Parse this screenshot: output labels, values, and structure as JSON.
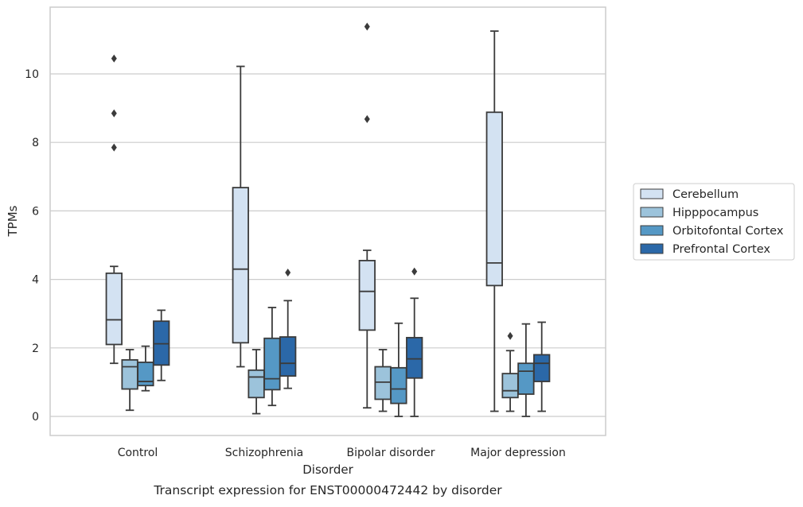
{
  "chart_data": {
    "type": "boxplot",
    "title": "",
    "caption": "Transcript expression for ENST00000472442 by disorder",
    "xlabel": "Disorder",
    "ylabel": "TPMs",
    "ylim": [
      -0.55,
      12.0
    ],
    "yticks": [
      0,
      2,
      4,
      6,
      8,
      10
    ],
    "grid": "horizontal",
    "legend_position": "right",
    "categories": [
      "Control",
      "Schizophrenia",
      "Bipolar disorder",
      "Major depression"
    ],
    "series": [
      {
        "name": "Cerebellum",
        "color": "#d3e2f2",
        "boxes": [
          {
            "whislo": 1.55,
            "q1": 2.1,
            "med": 2.82,
            "q3": 4.18,
            "whishi": 4.38,
            "fliers": [
              7.85,
              8.85,
              10.45
            ]
          },
          {
            "whislo": 1.45,
            "q1": 2.15,
            "med": 4.3,
            "q3": 6.68,
            "whishi": 10.22,
            "fliers": []
          },
          {
            "whislo": 0.25,
            "q1": 2.52,
            "med": 3.65,
            "q3": 4.55,
            "whishi": 4.85,
            "fliers": [
              8.68,
              11.38
            ]
          },
          {
            "whislo": 0.15,
            "q1": 3.82,
            "med": 4.48,
            "q3": 8.88,
            "whishi": 11.25,
            "fliers": []
          }
        ]
      },
      {
        "name": "Hipppocampus",
        "color": "#9cc3db",
        "boxes": [
          {
            "whislo": 0.18,
            "q1": 0.8,
            "med": 1.45,
            "q3": 1.65,
            "whishi": 1.95,
            "fliers": []
          },
          {
            "whislo": 0.08,
            "q1": 0.55,
            "med": 1.15,
            "q3": 1.35,
            "whishi": 1.95,
            "fliers": []
          },
          {
            "whislo": 0.15,
            "q1": 0.5,
            "med": 1.0,
            "q3": 1.45,
            "whishi": 1.95,
            "fliers": []
          },
          {
            "whislo": 0.15,
            "q1": 0.55,
            "med": 0.75,
            "q3": 1.25,
            "whishi": 1.92,
            "fliers": [
              2.35
            ]
          }
        ]
      },
      {
        "name": "Orbitofontal Cortex",
        "color": "#5598c5",
        "boxes": [
          {
            "whislo": 0.75,
            "q1": 0.9,
            "med": 1.02,
            "q3": 1.58,
            "whishi": 2.05,
            "fliers": []
          },
          {
            "whislo": 0.32,
            "q1": 0.78,
            "med": 1.1,
            "q3": 2.28,
            "whishi": 3.18,
            "fliers": []
          },
          {
            "whislo": 0.0,
            "q1": 0.38,
            "med": 0.8,
            "q3": 1.42,
            "whishi": 2.72,
            "fliers": []
          },
          {
            "whislo": 0.0,
            "q1": 0.65,
            "med": 1.32,
            "q3": 1.55,
            "whishi": 2.7,
            "fliers": []
          }
        ]
      },
      {
        "name": "Prefrontal Cortex",
        "color": "#2b68a8",
        "boxes": [
          {
            "whislo": 1.05,
            "q1": 1.5,
            "med": 2.12,
            "q3": 2.78,
            "whishi": 3.1,
            "fliers": []
          },
          {
            "whislo": 0.82,
            "q1": 1.18,
            "med": 1.55,
            "q3": 2.32,
            "whishi": 3.38,
            "fliers": [
              4.2
            ]
          },
          {
            "whislo": 0.0,
            "q1": 1.12,
            "med": 1.68,
            "q3": 2.3,
            "whishi": 3.45,
            "fliers": [
              4.23
            ]
          },
          {
            "whislo": 0.15,
            "q1": 1.02,
            "med": 1.55,
            "q3": 1.8,
            "whishi": 2.75,
            "fliers": []
          }
        ]
      }
    ]
  }
}
